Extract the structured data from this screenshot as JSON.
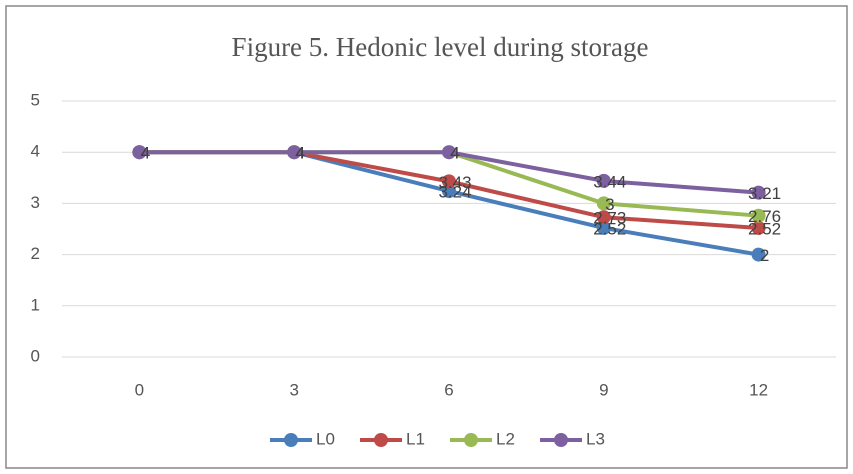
{
  "chart_data": {
    "type": "line",
    "title": "Figure 5. Hedonic level during storage",
    "categories": [
      "0",
      "3",
      "6",
      "9",
      "12"
    ],
    "series": [
      {
        "name": "L0",
        "color": "#4a7ebb",
        "values": [
          4,
          4,
          3.24,
          2.52,
          2
        ]
      },
      {
        "name": "L1",
        "color": "#be4b48",
        "values": [
          4,
          4,
          3.43,
          2.73,
          2.52
        ]
      },
      {
        "name": "L2",
        "color": "#98b954",
        "values": [
          4,
          4,
          4,
          3,
          2.76
        ]
      },
      {
        "name": "L3",
        "color": "#7d60a0",
        "values": [
          4,
          4,
          4,
          3.44,
          3.21
        ]
      }
    ],
    "ylim": [
      0,
      5
    ],
    "yticks": [
      0,
      1,
      2,
      3,
      4,
      5
    ],
    "grid": true,
    "legend": "bottom",
    "data_labels": true
  }
}
